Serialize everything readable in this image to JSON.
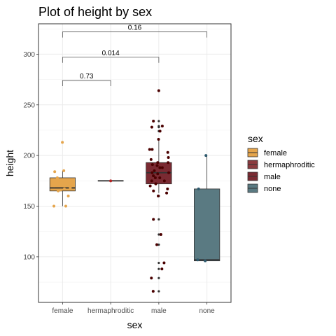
{
  "chart_data": {
    "type": "box",
    "title": "Plot of height by sex",
    "xlabel": "sex",
    "ylabel": "height",
    "ylim": [
      55,
      330
    ],
    "yticks": [
      100,
      150,
      200,
      250,
      300
    ],
    "grid": true,
    "legend": {
      "title": "sex",
      "placement": "right",
      "entries": [
        "female",
        "hermaphroditic",
        "male",
        "none"
      ]
    },
    "categories": [
      "female",
      "hermaphroditic",
      "male",
      "none"
    ],
    "series": [
      {
        "name": "female",
        "fill": "#E5A54C",
        "point_color": "#E5A54C",
        "box": {
          "min": 150,
          "q1": 165,
          "median": 168,
          "q3": 178,
          "max": 185
        },
        "outliers": [
          213
        ],
        "points": [
          213,
          185,
          184,
          178,
          175,
          173,
          170,
          168,
          167,
          166,
          165,
          160,
          150,
          150
        ]
      },
      {
        "name": "hermaphroditic",
        "fill": "#8B3A3E",
        "point_color": "#B22222",
        "box": {
          "min": 175,
          "q1": 175,
          "median": 175,
          "q3": 175,
          "max": 175
        },
        "outliers": [],
        "points": [
          175
        ]
      },
      {
        "name": "male",
        "fill": "#7A2A32",
        "point_color": "#4A0000",
        "box": {
          "min": 163,
          "q1": 172,
          "median": 183,
          "q3": 193,
          "max": 216
        },
        "outliers": [
          264,
          234,
          229,
          228,
          224,
          160,
          137,
          122,
          112,
          94,
          88,
          79,
          66
        ],
        "points": [
          264,
          234,
          229,
          228,
          224,
          216,
          206,
          206,
          203,
          198,
          196,
          193,
          193,
          191,
          190,
          188,
          188,
          185,
          183,
          183,
          182,
          180,
          178,
          178,
          175,
          175,
          172,
          172,
          170,
          167,
          165,
          163,
          160,
          137,
          122,
          112,
          94,
          88,
          79,
          66
        ]
      },
      {
        "name": "none",
        "fill": "#5A7A82",
        "point_color": "#2E5A6E",
        "box": {
          "min": 96,
          "q1": 96,
          "median": 97,
          "q3": 167,
          "max": 200
        },
        "outliers": [],
        "points": [
          200,
          167,
          97,
          96
        ]
      }
    ],
    "comparisons": [
      {
        "from": "female",
        "to": "hermaphroditic",
        "label": "0.73",
        "y": 274
      },
      {
        "from": "female",
        "to": "male",
        "label": "0.014",
        "y": 297
      },
      {
        "from": "female",
        "to": "none",
        "label": "0.16",
        "y": 322
      }
    ]
  }
}
